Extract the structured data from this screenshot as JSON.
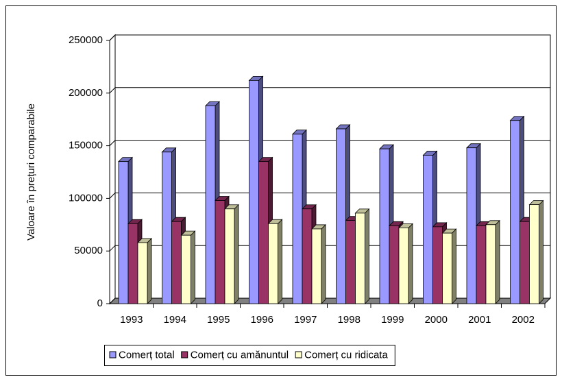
{
  "chart_data": {
    "type": "bar3d",
    "y_label": "Valoare în prețuri comparabile",
    "categories": [
      "1993",
      "1994",
      "1995",
      "1996",
      "1997",
      "1998",
      "1999",
      "2000",
      "2001",
      "2002"
    ],
    "series": [
      {
        "name": "Comerț total",
        "color": "#9999ff",
        "values": [
          135000,
          144000,
          188000,
          212000,
          161000,
          166000,
          147000,
          141000,
          148000,
          174000
        ]
      },
      {
        "name": "Comerț cu amănuntul",
        "color": "#993366",
        "values": [
          76000,
          78000,
          98000,
          135000,
          90000,
          79000,
          74000,
          73000,
          74000,
          78000
        ]
      },
      {
        "name": "Comerț cu ridicata",
        "color": "#ffffcc",
        "values": [
          58000,
          65000,
          90000,
          76000,
          71000,
          86000,
          72000,
          67000,
          75000,
          94000
        ]
      }
    ],
    "ylim": [
      0,
      250000
    ],
    "yticks": [
      0,
      50000,
      100000,
      150000,
      200000,
      250000
    ],
    "grid": true,
    "legend": "bottom"
  }
}
